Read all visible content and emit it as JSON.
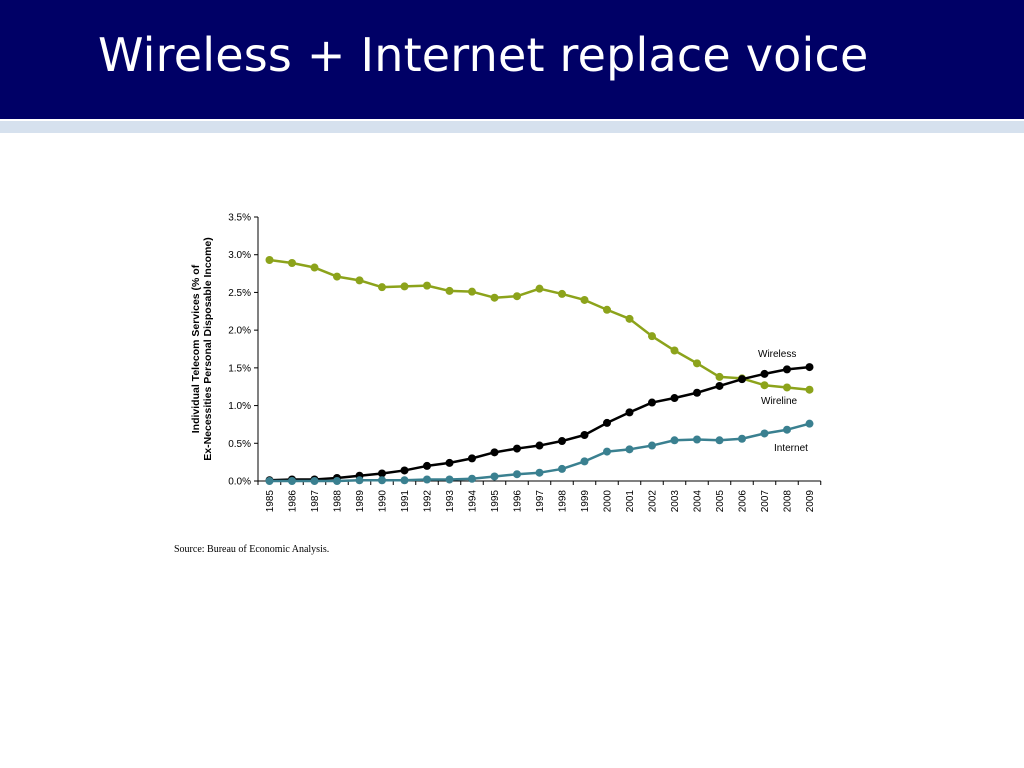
{
  "slide": {
    "title": "Wireless + Internet replace voice",
    "source": "Source: Bureau of Economic Analysis."
  },
  "colors": {
    "title_bar": "#000066",
    "underline": "#d6e1ee",
    "wireline": "#8ca31b",
    "wireless": "#000000",
    "internet": "#3a8090"
  },
  "chart_data": {
    "type": "line",
    "title": "",
    "ylabel": [
      "Individual Telecom Services (% of",
      "Ex-Necessities Personal Disposable Income)"
    ],
    "xlabel": "",
    "ylim": [
      0,
      3.5
    ],
    "yticks": [
      "0.0%",
      "0.5%",
      "1.0%",
      "1.5%",
      "2.0%",
      "2.5%",
      "3.0%",
      "3.5%"
    ],
    "x": [
      "1985",
      "1986",
      "1987",
      "1988",
      "1989",
      "1990",
      "1991",
      "1992",
      "1993",
      "1994",
      "1995",
      "1996",
      "1997",
      "1998",
      "1999",
      "2000",
      "2001",
      "2002",
      "2003",
      "2004",
      "2005",
      "2006",
      "2007",
      "2008",
      "2009"
    ],
    "legend": "inline labels near line ends",
    "grid": false,
    "series": [
      {
        "name": "Wireline",
        "color": "#8ca31b",
        "values": [
          2.93,
          2.89,
          2.83,
          2.71,
          2.66,
          2.57,
          2.58,
          2.59,
          2.52,
          2.51,
          2.43,
          2.45,
          2.55,
          2.48,
          2.4,
          2.27,
          2.15,
          1.92,
          1.73,
          1.56,
          1.38,
          1.36,
          1.27,
          1.24,
          1.21
        ]
      },
      {
        "name": "Wireless",
        "color": "#000000",
        "values": [
          0.01,
          0.02,
          0.02,
          0.04,
          0.07,
          0.1,
          0.14,
          0.2,
          0.24,
          0.3,
          0.38,
          0.43,
          0.47,
          0.53,
          0.61,
          0.77,
          0.91,
          1.04,
          1.1,
          1.17,
          1.26,
          1.35,
          1.42,
          1.48,
          1.51
        ]
      },
      {
        "name": "Internet",
        "color": "#3a8090",
        "values": [
          0.0,
          0.0,
          0.0,
          0.0,
          0.01,
          0.01,
          0.01,
          0.02,
          0.02,
          0.03,
          0.06,
          0.09,
          0.11,
          0.16,
          0.26,
          0.39,
          0.42,
          0.47,
          0.54,
          0.55,
          0.54,
          0.56,
          0.63,
          0.68,
          0.76
        ]
      }
    ]
  }
}
